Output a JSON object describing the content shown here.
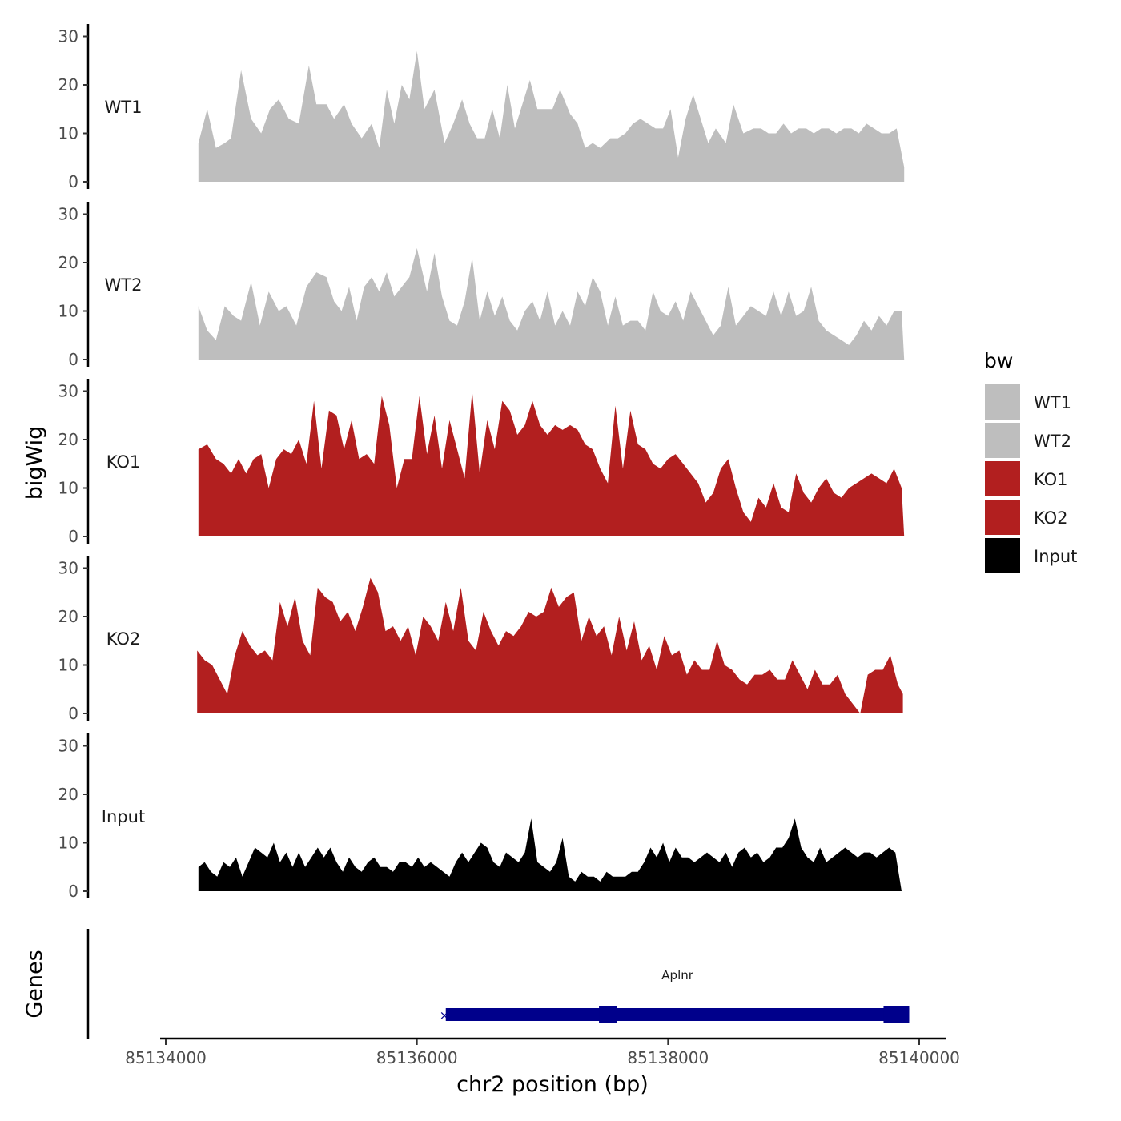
{
  "chart_data": {
    "type": "area",
    "y_axis_title": "bigWig",
    "x_axis_title": "chr2 position (bp)",
    "x_range": [
      85134000,
      85140000
    ],
    "x_ticks": [
      85134000,
      85136000,
      85138000,
      85140000
    ],
    "x_tick_labels": [
      "85134000",
      "85136000",
      "85138000",
      "85140000"
    ],
    "y_range": [
      0,
      32
    ],
    "y_ticks": [
      0,
      10,
      20,
      30
    ],
    "y_tick_labels": [
      "0",
      "10",
      "20",
      "30"
    ],
    "legend": {
      "title": "bw",
      "position": "right"
    },
    "tracks": [
      {
        "name": "WT1",
        "color": "#bebebe",
        "x": [
          85134260,
          85134330,
          85134400,
          85134470,
          85134520,
          85134600,
          85134680,
          85134760,
          85134830,
          85134900,
          85134980,
          85135060,
          85135140,
          85135200,
          85135280,
          85135340,
          85135420,
          85135480,
          85135560,
          85135640,
          85135700,
          85135760,
          85135820,
          85135880,
          85135940,
          85136000,
          85136060,
          85136140,
          85136220,
          85136290,
          85136360,
          85136420,
          85136480,
          85136540,
          85136600,
          85136660,
          85136720,
          85136780,
          85136840,
          85136900,
          85136960,
          85137020,
          85137080,
          85137140,
          85137220,
          85137280,
          85137340,
          85137400,
          85137460,
          85137540,
          85137600,
          85137660,
          85137720,
          85137780,
          85137840,
          85137900,
          85137960,
          85138020,
          85138080,
          85138140,
          85138200,
          85138260,
          85138320,
          85138380,
          85138460,
          85138520,
          85138600,
          85138680,
          85138740,
          85138800,
          85138860,
          85138920,
          85138980,
          85139040,
          85139100,
          85139160,
          85139220,
          85139280,
          85139340,
          85139400,
          85139460,
          85139520,
          85139580,
          85139640,
          85139700,
          85139760,
          85139820,
          85139880
        ],
        "values": [
          8,
          15,
          7,
          8,
          9,
          23,
          13,
          10,
          15,
          17,
          13,
          12,
          24,
          16,
          16,
          13,
          16,
          12,
          9,
          12,
          7,
          19,
          12,
          20,
          17,
          27,
          15,
          19,
          8,
          12,
          17,
          12,
          9,
          9,
          15,
          9,
          20,
          11,
          16,
          21,
          15,
          15,
          15,
          19,
          14,
          12,
          7,
          8,
          7,
          9,
          9,
          10,
          12,
          13,
          12,
          11,
          11,
          15,
          5,
          13,
          18,
          13,
          8,
          11,
          8,
          16,
          10,
          11,
          11,
          10,
          10,
          12,
          10,
          11,
          11,
          10,
          11,
          11,
          10,
          11,
          11,
          10,
          12,
          11,
          10,
          10,
          11,
          3
        ]
      },
      {
        "name": "WT2",
        "color": "#bebebe",
        "x": [
          85134260,
          85134330,
          85134400,
          85134470,
          85134540,
          85134600,
          85134680,
          85134750,
          85134820,
          85134900,
          85134960,
          85135040,
          85135120,
          85135200,
          85135280,
          85135340,
          85135400,
          85135460,
          85135520,
          85135580,
          85135640,
          85135700,
          85135760,
          85135820,
          85135880,
          85135940,
          85136000,
          85136080,
          85136140,
          85136200,
          85136260,
          85136320,
          85136380,
          85136440,
          85136500,
          85136560,
          85136620,
          85136680,
          85136740,
          85136800,
          85136860,
          85136920,
          85136980,
          85137040,
          85137100,
          85137160,
          85137220,
          85137280,
          85137340,
          85137400,
          85137460,
          85137520,
          85137580,
          85137640,
          85137700,
          85137760,
          85137820,
          85137880,
          85137940,
          85138000,
          85138060,
          85138120,
          85138180,
          85138240,
          85138300,
          85138360,
          85138420,
          85138480,
          85138540,
          85138600,
          85138660,
          85138720,
          85138780,
          85138840,
          85138900,
          85138960,
          85139020,
          85139080,
          85139140,
          85139200,
          85139260,
          85139320,
          85139380,
          85139440,
          85139500,
          85139560,
          85139620,
          85139680,
          85139740,
          85139800,
          85139860,
          85139880
        ],
        "values": [
          11,
          6,
          4,
          11,
          9,
          8,
          16,
          7,
          14,
          10,
          11,
          7,
          15,
          18,
          17,
          12,
          10,
          15,
          8,
          15,
          17,
          14,
          18,
          13,
          15,
          17,
          23,
          14,
          22,
          13,
          8,
          7,
          12,
          21,
          8,
          14,
          9,
          13,
          8,
          6,
          10,
          12,
          8,
          14,
          7,
          10,
          7,
          14,
          11,
          17,
          14,
          7,
          13,
          7,
          8,
          8,
          6,
          14,
          10,
          9,
          12,
          8,
          14,
          11,
          8,
          5,
          7,
          15,
          7,
          9,
          11,
          10,
          9,
          14,
          9,
          14,
          9,
          10,
          15,
          8,
          6,
          5,
          4,
          3,
          5,
          8,
          6,
          9,
          7,
          10,
          10,
          0
        ]
      },
      {
        "name": "KO1",
        "color": "#b21f1f",
        "x": [
          85134260,
          85134330,
          85134400,
          85134460,
          85134520,
          85134580,
          85134640,
          85134700,
          85134760,
          85134820,
          85134880,
          85134940,
          85135000,
          85135060,
          85135120,
          85135180,
          85135240,
          85135300,
          85135360,
          85135420,
          85135480,
          85135540,
          85135600,
          85135660,
          85135720,
          85135780,
          85135840,
          85135900,
          85135960,
          85136020,
          85136080,
          85136140,
          85136200,
          85136260,
          85136320,
          85136380,
          85136440,
          85136500,
          85136560,
          85136620,
          85136680,
          85136740,
          85136800,
          85136860,
          85136920,
          85136980,
          85137040,
          85137100,
          85137160,
          85137220,
          85137280,
          85137340,
          85137400,
          85137460,
          85137520,
          85137580,
          85137640,
          85137700,
          85137760,
          85137820,
          85137880,
          85137940,
          85138000,
          85138060,
          85138120,
          85138180,
          85138240,
          85138300,
          85138360,
          85138420,
          85138480,
          85138540,
          85138600,
          85138660,
          85138720,
          85138780,
          85138840,
          85138900,
          85138960,
          85139020,
          85139080,
          85139140,
          85139200,
          85139260,
          85139320,
          85139380,
          85139440,
          85139500,
          85139560,
          85139620,
          85139680,
          85139740,
          85139800,
          85139860,
          85139880
        ],
        "values": [
          18,
          19,
          16,
          15,
          13,
          16,
          13,
          16,
          17,
          10,
          16,
          18,
          17,
          20,
          15,
          28,
          14,
          26,
          25,
          18,
          24,
          16,
          17,
          15,
          29,
          23,
          10,
          16,
          16,
          29,
          17,
          25,
          14,
          24,
          18,
          12,
          30,
          13,
          24,
          18,
          28,
          26,
          21,
          23,
          28,
          23,
          21,
          23,
          22,
          23,
          22,
          19,
          18,
          14,
          11,
          27,
          14,
          26,
          19,
          18,
          15,
          14,
          16,
          17,
          15,
          13,
          11,
          7,
          9,
          14,
          16,
          10,
          5,
          3,
          8,
          6,
          11,
          6,
          5,
          13,
          9,
          7,
          10,
          12,
          9,
          8,
          10,
          11,
          12,
          13,
          12,
          11,
          14,
          10,
          0
        ]
      },
      {
        "name": "KO2",
        "color": "#b21f1f",
        "x": [
          85134250,
          85134310,
          85134370,
          85134430,
          85134490,
          85134550,
          85134610,
          85134670,
          85134730,
          85134790,
          85134850,
          85134910,
          85134970,
          85135030,
          85135090,
          85135150,
          85135210,
          85135270,
          85135330,
          85135390,
          85135450,
          85135510,
          85135570,
          85135630,
          85135690,
          85135750,
          85135810,
          85135870,
          85135930,
          85135990,
          85136050,
          85136110,
          85136170,
          85136230,
          85136290,
          85136350,
          85136410,
          85136470,
          85136530,
          85136590,
          85136650,
          85136710,
          85136770,
          85136830,
          85136890,
          85136950,
          85137010,
          85137070,
          85137130,
          85137190,
          85137250,
          85137310,
          85137370,
          85137430,
          85137490,
          85137550,
          85137610,
          85137670,
          85137730,
          85137790,
          85137850,
          85137910,
          85137970,
          85138030,
          85138090,
          85138150,
          85138210,
          85138270,
          85138330,
          85138390,
          85138450,
          85138510,
          85138570,
          85138630,
          85138690,
          85138750,
          85138810,
          85138870,
          85138930,
          85138990,
          85139050,
          85139110,
          85139170,
          85139230,
          85139290,
          85139350,
          85139410,
          85139470,
          85139530,
          85139590,
          85139650,
          85139710,
          85139770,
          85139830,
          85139870
        ],
        "values": [
          13,
          11,
          10,
          7,
          4,
          12,
          17,
          14,
          12,
          13,
          11,
          23,
          18,
          24,
          15,
          12,
          26,
          24,
          23,
          19,
          21,
          17,
          22,
          28,
          25,
          17,
          18,
          15,
          18,
          12,
          20,
          18,
          15,
          23,
          17,
          26,
          15,
          13,
          21,
          17,
          14,
          17,
          16,
          18,
          21,
          20,
          21,
          26,
          22,
          24,
          25,
          15,
          20,
          16,
          18,
          12,
          20,
          13,
          19,
          11,
          14,
          9,
          16,
          12,
          13,
          8,
          11,
          9,
          9,
          15,
          10,
          9,
          7,
          6,
          8,
          8,
          9,
          7,
          7,
          11,
          8,
          5,
          9,
          6,
          6,
          8,
          4,
          2,
          0,
          8,
          9,
          9,
          12,
          6,
          4
        ]
      },
      {
        "name": "Input",
        "color": "#000000",
        "x": [
          85134260,
          85134310,
          85134360,
          85134410,
          85134460,
          85134510,
          85134560,
          85134610,
          85134660,
          85134710,
          85134760,
          85134810,
          85134860,
          85134910,
          85134960,
          85135010,
          85135060,
          85135110,
          85135160,
          85135210,
          85135260,
          85135310,
          85135360,
          85135410,
          85135460,
          85135510,
          85135560,
          85135610,
          85135660,
          85135710,
          85135760,
          85135810,
          85135860,
          85135910,
          85135960,
          85136010,
          85136060,
          85136110,
          85136160,
          85136210,
          85136260,
          85136310,
          85136360,
          85136410,
          85136460,
          85136510,
          85136560,
          85136610,
          85136660,
          85136710,
          85136760,
          85136810,
          85136860,
          85136910,
          85136960,
          85137010,
          85137060,
          85137110,
          85137160,
          85137210,
          85137260,
          85137310,
          85137360,
          85137410,
          85137460,
          85137510,
          85137560,
          85137610,
          85137660,
          85137710,
          85137760,
          85137810,
          85137860,
          85137910,
          85137960,
          85138010,
          85138060,
          85138110,
          85138160,
          85138210,
          85138260,
          85138310,
          85138360,
          85138410,
          85138460,
          85138510,
          85138560,
          85138610,
          85138660,
          85138710,
          85138760,
          85138810,
          85138860,
          85138910,
          85138960,
          85139010,
          85139060,
          85139110,
          85139160,
          85139210,
          85139260,
          85139310,
          85139360,
          85139410,
          85139460,
          85139510,
          85139560,
          85139610,
          85139660,
          85139710,
          85139760,
          85139810,
          85139860,
          85139890
        ],
        "values": [
          5,
          6,
          4,
          3,
          6,
          5,
          7,
          3,
          6,
          9,
          8,
          7,
          10,
          6,
          8,
          5,
          8,
          5,
          7,
          9,
          7,
          9,
          6,
          4,
          7,
          5,
          4,
          6,
          7,
          5,
          5,
          4,
          6,
          6,
          5,
          7,
          5,
          6,
          5,
          4,
          3,
          6,
          8,
          6,
          8,
          10,
          9,
          6,
          5,
          8,
          7,
          6,
          8,
          15,
          6,
          5,
          4,
          6,
          11,
          3,
          2,
          4,
          3,
          3,
          2,
          4,
          3,
          3,
          3,
          4,
          4,
          6,
          9,
          7,
          10,
          6,
          9,
          7,
          7,
          6,
          7,
          8,
          7,
          6,
          8,
          5,
          8,
          9,
          7,
          8,
          6,
          7,
          9,
          9,
          11,
          15,
          9,
          7,
          6,
          9,
          6,
          7,
          8,
          9,
          8,
          7,
          8,
          8,
          7,
          8,
          9,
          8,
          0,
          0
        ]
      }
    ],
    "genes_track": {
      "label": "Genes",
      "genes": [
        {
          "name": "Aplnr",
          "start": 85136230,
          "end": 85139920,
          "strand": "-",
          "color": "#00008b"
        }
      ]
    },
    "legend_entries": [
      {
        "label": "WT1",
        "color": "#bebebe"
      },
      {
        "label": "WT2",
        "color": "#bebebe"
      },
      {
        "label": "KO1",
        "color": "#b21f1f"
      },
      {
        "label": "KO2",
        "color": "#b21f1f"
      },
      {
        "label": "Input",
        "color": "#000000"
      }
    ]
  }
}
